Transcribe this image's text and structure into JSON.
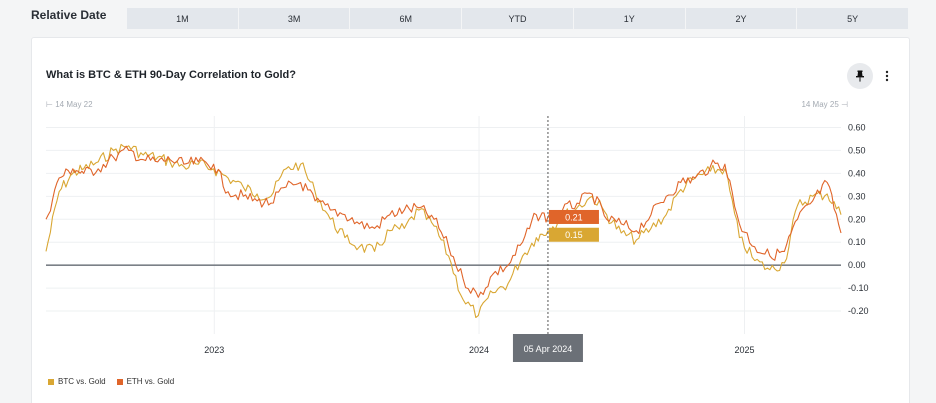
{
  "relative_date_label": "Relative Date",
  "ranges": [
    "1M",
    "3M",
    "6M",
    "YTD",
    "1Y",
    "2Y",
    "5Y"
  ],
  "chart_title": "What is BTC & ETH 90-Day Correlation to Gold?",
  "range_start": "14 May 22",
  "range_end": "14 May 25",
  "hover": {
    "date": "05 Apr 2024",
    "eth": "0.21",
    "btc": "0.15"
  },
  "colors": {
    "btc": "#d9a733",
    "eth": "#e0652a",
    "zero": "#7b8087",
    "hover_bg": "#6b7077"
  },
  "chart_data": {
    "type": "line",
    "title": "What is BTC & ETH 90-Day Correlation to Gold?",
    "x_range": [
      "2022-05-14",
      "2025-05-14"
    ],
    "x_ticks": [
      "2023",
      "2024",
      "2025"
    ],
    "y_ticks": [
      "0.60",
      "0.50",
      "0.40",
      "0.30",
      "0.20",
      "0.10",
      "0.00",
      "-0.10",
      "-0.20"
    ],
    "ylim": [
      -0.3,
      0.65
    ],
    "series": [
      {
        "name": "BTC vs. Gold",
        "x": [
          "2022-05-14",
          "2022-06-01",
          "2022-06-20",
          "2022-07-05",
          "2022-07-25",
          "2022-08-15",
          "2022-09-05",
          "2022-09-25",
          "2022-10-15",
          "2022-11-01",
          "2022-11-20",
          "2022-12-10",
          "2022-12-31",
          "2023-01-20",
          "2023-02-10",
          "2023-03-01",
          "2023-03-20",
          "2023-04-10",
          "2023-04-30",
          "2023-05-20",
          "2023-06-10",
          "2023-06-30",
          "2023-07-20",
          "2023-08-10",
          "2023-08-31",
          "2023-09-20",
          "2023-10-10",
          "2023-10-31",
          "2023-11-20",
          "2023-12-10",
          "2023-12-31",
          "2024-01-20",
          "2024-02-10",
          "2024-03-01",
          "2024-03-20",
          "2024-04-05",
          "2024-04-25",
          "2024-05-15",
          "2024-06-05",
          "2024-06-25",
          "2024-07-15",
          "2024-08-05",
          "2024-08-25",
          "2024-09-15",
          "2024-10-05",
          "2024-10-25",
          "2024-11-15",
          "2024-12-05",
          "2024-12-25",
          "2025-01-15",
          "2025-02-05",
          "2025-02-25",
          "2025-03-15",
          "2025-04-05",
          "2025-04-25",
          "2025-05-14"
        ],
        "values": [
          0.06,
          0.32,
          0.4,
          0.42,
          0.45,
          0.5,
          0.52,
          0.48,
          0.47,
          0.45,
          0.43,
          0.44,
          0.42,
          0.38,
          0.34,
          0.31,
          0.3,
          0.42,
          0.44,
          0.32,
          0.2,
          0.12,
          0.08,
          0.06,
          0.15,
          0.16,
          0.24,
          0.17,
          0.04,
          -0.15,
          -0.22,
          -0.12,
          -0.08,
          0.04,
          0.12,
          0.15,
          0.21,
          0.25,
          0.3,
          0.22,
          0.14,
          0.11,
          0.16,
          0.22,
          0.33,
          0.38,
          0.41,
          0.42,
          0.12,
          0.02,
          -0.02,
          0.01,
          0.26,
          0.3,
          0.31,
          0.22
        ]
      },
      {
        "name": "ETH vs. Gold",
        "x": [
          "2022-05-14",
          "2022-06-01",
          "2022-06-20",
          "2022-07-05",
          "2022-07-25",
          "2022-08-15",
          "2022-09-05",
          "2022-09-25",
          "2022-10-15",
          "2022-11-01",
          "2022-11-20",
          "2022-12-10",
          "2022-12-31",
          "2023-01-20",
          "2023-02-10",
          "2023-03-01",
          "2023-03-20",
          "2023-04-10",
          "2023-04-30",
          "2023-05-20",
          "2023-06-10",
          "2023-06-30",
          "2023-07-20",
          "2023-08-10",
          "2023-08-31",
          "2023-09-20",
          "2023-10-10",
          "2023-10-31",
          "2023-11-20",
          "2023-12-10",
          "2023-12-31",
          "2024-01-20",
          "2024-02-10",
          "2024-03-01",
          "2024-03-20",
          "2024-04-05",
          "2024-04-25",
          "2024-05-15",
          "2024-06-05",
          "2024-06-25",
          "2024-07-15",
          "2024-08-05",
          "2024-08-25",
          "2024-09-15",
          "2024-10-05",
          "2024-10-25",
          "2024-11-15",
          "2024-12-05",
          "2024-12-25",
          "2025-01-15",
          "2025-02-05",
          "2025-02-25",
          "2025-03-15",
          "2025-04-05",
          "2025-04-25",
          "2025-05-14"
        ],
        "values": [
          0.2,
          0.38,
          0.42,
          0.4,
          0.42,
          0.47,
          0.5,
          0.46,
          0.45,
          0.46,
          0.44,
          0.45,
          0.44,
          0.32,
          0.3,
          0.28,
          0.27,
          0.34,
          0.36,
          0.28,
          0.24,
          0.22,
          0.18,
          0.16,
          0.22,
          0.24,
          0.25,
          0.2,
          0.08,
          -0.06,
          -0.14,
          -0.04,
          0.0,
          0.1,
          0.22,
          0.21,
          0.24,
          0.27,
          0.31,
          0.2,
          0.18,
          0.15,
          0.22,
          0.3,
          0.36,
          0.38,
          0.43,
          0.44,
          0.18,
          0.08,
          0.04,
          0.06,
          0.2,
          0.28,
          0.36,
          0.14
        ]
      }
    ]
  }
}
